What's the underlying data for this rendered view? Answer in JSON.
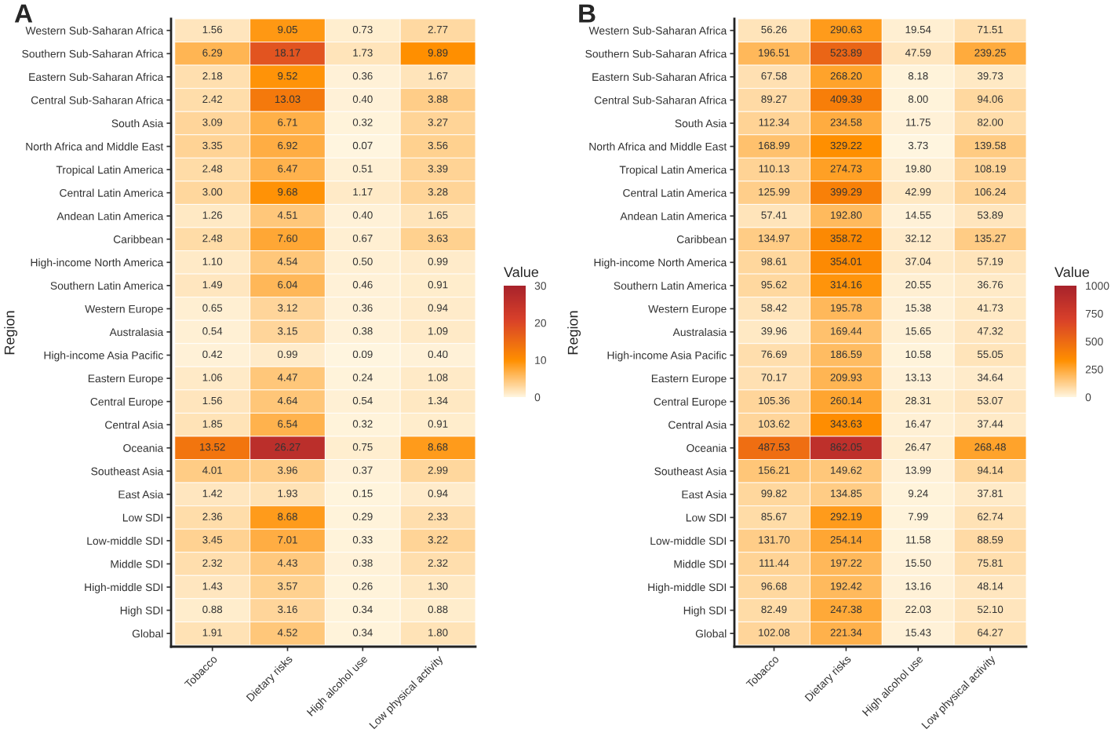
{
  "chart_data": [
    {
      "type": "heatmap",
      "title": "A",
      "ylabel": "Region",
      "clabel": "Value",
      "categories": [
        "Tobacco",
        "Dietary risks",
        "High alcohol use",
        "Low physical activity"
      ],
      "y_categories": [
        "Western Sub-Saharan Africa",
        "Southern Sub-Saharan Africa",
        "Eastern Sub-Saharan Africa",
        "Central Sub-Saharan Africa",
        "South Asia",
        "North Africa and Middle East",
        "Tropical Latin America",
        "Central Latin America",
        "Andean Latin America",
        "Caribbean",
        "High-income North America",
        "Southern Latin America",
        "Western Europe",
        "Australasia",
        "High-income Asia Pacific",
        "Eastern Europe",
        "Central Europe",
        "Central Asia",
        "Oceania",
        "Southeast Asia",
        "East Asia",
        "Low SDI",
        "Low-middle SDI",
        "Middle SDI",
        "High-middle SDI",
        "High SDI",
        "Global"
      ],
      "cells": [
        [
          1.56,
          9.05,
          0.73,
          2.77
        ],
        [
          6.29,
          18.17,
          1.73,
          9.89
        ],
        [
          2.18,
          9.52,
          0.36,
          1.67
        ],
        [
          2.42,
          13.03,
          0.4,
          3.88
        ],
        [
          3.09,
          6.71,
          0.32,
          3.27
        ],
        [
          3.35,
          6.92,
          0.07,
          3.56
        ],
        [
          2.48,
          6.47,
          0.51,
          3.39
        ],
        [
          3.0,
          9.68,
          1.17,
          3.28
        ],
        [
          1.26,
          4.51,
          0.4,
          1.65
        ],
        [
          2.48,
          7.6,
          0.67,
          3.63
        ],
        [
          1.1,
          4.54,
          0.5,
          0.99
        ],
        [
          1.49,
          6.04,
          0.46,
          0.91
        ],
        [
          0.65,
          3.12,
          0.36,
          0.94
        ],
        [
          0.54,
          3.15,
          0.38,
          1.09
        ],
        [
          0.42,
          0.99,
          0.09,
          0.4
        ],
        [
          1.06,
          4.47,
          0.24,
          1.08
        ],
        [
          1.56,
          4.64,
          0.54,
          1.34
        ],
        [
          1.85,
          6.54,
          0.32,
          0.91
        ],
        [
          13.52,
          26.27,
          0.75,
          8.68
        ],
        [
          4.01,
          3.96,
          0.37,
          2.99
        ],
        [
          1.42,
          1.93,
          0.15,
          0.94
        ],
        [
          2.36,
          8.68,
          0.29,
          2.33
        ],
        [
          3.45,
          7.01,
          0.33,
          3.22
        ],
        [
          2.32,
          4.43,
          0.38,
          2.32
        ],
        [
          1.43,
          3.57,
          0.26,
          1.3
        ],
        [
          0.88,
          3.16,
          0.34,
          0.88
        ],
        [
          1.91,
          4.52,
          0.34,
          1.8
        ]
      ],
      "cell_labels": [
        [
          "1.56",
          "9.05",
          "0.73",
          "2.77"
        ],
        [
          "6.29",
          "18.17",
          "1.73",
          "9.89"
        ],
        [
          "2.18",
          "9.52",
          "0.36",
          "1.67"
        ],
        [
          "2.42",
          "13.03",
          "0.40",
          "3.88"
        ],
        [
          "3.09",
          "6.71",
          "0.32",
          "3.27"
        ],
        [
          "3.35",
          "6.92",
          "0.07",
          "3.56"
        ],
        [
          "2.48",
          "6.47",
          "0.51",
          "3.39"
        ],
        [
          "3.00",
          "9.68",
          "1.17",
          "3.28"
        ],
        [
          "1.26",
          "4.51",
          "0.40",
          "1.65"
        ],
        [
          "2.48",
          "7.60",
          "0.67",
          "3.63"
        ],
        [
          "1.10",
          "4.54",
          "0.50",
          "0.99"
        ],
        [
          "1.49",
          "6.04",
          "0.46",
          "0.91"
        ],
        [
          "0.65",
          "3.12",
          "0.36",
          "0.94"
        ],
        [
          "0.54",
          "3.15",
          "0.38",
          "1.09"
        ],
        [
          "0.42",
          "0.99",
          "0.09",
          "0.40"
        ],
        [
          "1.06",
          "4.47",
          "0.24",
          "1.08"
        ],
        [
          "1.56",
          "4.64",
          "0.54",
          "1.34"
        ],
        [
          "1.85",
          "6.54",
          "0.32",
          "0.91"
        ],
        [
          "13.52",
          "26.27",
          "0.75",
          "8.68"
        ],
        [
          "4.01",
          "3.96",
          "0.37",
          "2.99"
        ],
        [
          "1.42",
          "1.93",
          "0.15",
          "0.94"
        ],
        [
          "2.36",
          "8.68",
          "0.29",
          "2.33"
        ],
        [
          "3.45",
          "7.01",
          "0.33",
          "3.22"
        ],
        [
          "2.32",
          "4.43",
          "0.38",
          "2.32"
        ],
        [
          "1.43",
          "3.57",
          "0.26",
          "1.30"
        ],
        [
          "0.88",
          "3.16",
          "0.34",
          "0.88"
        ],
        [
          "1.91",
          "4.52",
          "0.34",
          "1.80"
        ]
      ],
      "clim": [
        0,
        30
      ],
      "cticks": [
        0,
        10,
        20,
        30
      ]
    },
    {
      "type": "heatmap",
      "title": "B",
      "ylabel": "Region",
      "clabel": "Value",
      "categories": [
        "Tobacco",
        "Dietary risks",
        "High alcohol use",
        "Low physical activity"
      ],
      "y_categories": [
        "Western Sub-Saharan Africa",
        "Southern Sub-Saharan Africa",
        "Eastern Sub-Saharan Africa",
        "Central Sub-Saharan Africa",
        "South Asia",
        "North Africa and Middle East",
        "Tropical Latin America",
        "Central Latin America",
        "Andean Latin America",
        "Caribbean",
        "High-income North America",
        "Southern Latin America",
        "Western Europe",
        "Australasia",
        "High-income Asia Pacific",
        "Eastern Europe",
        "Central Europe",
        "Central Asia",
        "Oceania",
        "Southeast Asia",
        "East Asia",
        "Low SDI",
        "Low-middle SDI",
        "Middle SDI",
        "High-middle SDI",
        "High SDI",
        "Global"
      ],
      "cells": [
        [
          56.26,
          290.63,
          19.54,
          71.51
        ],
        [
          196.51,
          523.89,
          47.59,
          239.25
        ],
        [
          67.58,
          268.2,
          8.18,
          39.73
        ],
        [
          89.27,
          409.39,
          8.0,
          94.06
        ],
        [
          112.34,
          234.58,
          11.75,
          82.0
        ],
        [
          168.99,
          329.22,
          3.73,
          139.58
        ],
        [
          110.13,
          274.73,
          19.8,
          108.19
        ],
        [
          125.99,
          399.29,
          42.99,
          106.24
        ],
        [
          57.41,
          192.8,
          14.55,
          53.89
        ],
        [
          134.97,
          358.72,
          32.12,
          135.27
        ],
        [
          98.61,
          354.01,
          37.04,
          57.19
        ],
        [
          95.62,
          314.16,
          20.55,
          36.76
        ],
        [
          58.42,
          195.78,
          15.38,
          41.73
        ],
        [
          39.96,
          169.44,
          15.65,
          47.32
        ],
        [
          76.69,
          186.59,
          10.58,
          55.05
        ],
        [
          70.17,
          209.93,
          13.13,
          34.64
        ],
        [
          105.36,
          260.14,
          28.31,
          53.07
        ],
        [
          103.62,
          343.63,
          16.47,
          37.44
        ],
        [
          487.53,
          862.05,
          26.47,
          268.48
        ],
        [
          156.21,
          149.62,
          13.99,
          94.14
        ],
        [
          99.82,
          134.85,
          9.24,
          37.81
        ],
        [
          85.67,
          292.19,
          7.99,
          62.74
        ],
        [
          131.7,
          254.14,
          11.58,
          88.59
        ],
        [
          111.44,
          197.22,
          15.5,
          75.81
        ],
        [
          96.68,
          192.42,
          13.16,
          48.14
        ],
        [
          82.49,
          247.38,
          22.03,
          52.1
        ],
        [
          102.08,
          221.34,
          15.43,
          64.27
        ]
      ],
      "cell_labels": [
        [
          "56.26",
          "290.63",
          "19.54",
          "71.51"
        ],
        [
          "196.51",
          "523.89",
          "47.59",
          "239.25"
        ],
        [
          "67.58",
          "268.20",
          "8.18",
          "39.73"
        ],
        [
          "89.27",
          "409.39",
          "8.00",
          "94.06"
        ],
        [
          "112.34",
          "234.58",
          "11.75",
          "82.00"
        ],
        [
          "168.99",
          "329.22",
          "3.73",
          "139.58"
        ],
        [
          "110.13",
          "274.73",
          "19.80",
          "108.19"
        ],
        [
          "125.99",
          "399.29",
          "42.99",
          "106.24"
        ],
        [
          "57.41",
          "192.80",
          "14.55",
          "53.89"
        ],
        [
          "134.97",
          "358.72",
          "32.12",
          "135.27"
        ],
        [
          "98.61",
          "354.01",
          "37.04",
          "57.19"
        ],
        [
          "95.62",
          "314.16",
          "20.55",
          "36.76"
        ],
        [
          "58.42",
          "195.78",
          "15.38",
          "41.73"
        ],
        [
          "39.96",
          "169.44",
          "15.65",
          "47.32"
        ],
        [
          "76.69",
          "186.59",
          "10.58",
          "55.05"
        ],
        [
          "70.17",
          "209.93",
          "13.13",
          "34.64"
        ],
        [
          "105.36",
          "260.14",
          "28.31",
          "53.07"
        ],
        [
          "103.62",
          "343.63",
          "16.47",
          "37.44"
        ],
        [
          "487.53",
          "862.05",
          "26.47",
          "268.48"
        ],
        [
          "156.21",
          "149.62",
          "13.99",
          "94.14"
        ],
        [
          "99.82",
          "134.85",
          "9.24",
          "37.81"
        ],
        [
          "85.67",
          "292.19",
          "7.99",
          "62.74"
        ],
        [
          "131.70",
          "254.14",
          "11.58",
          "88.59"
        ],
        [
          "111.44",
          "197.22",
          "15.50",
          "75.81"
        ],
        [
          "96.68",
          "192.42",
          "13.16",
          "48.14"
        ],
        [
          "82.49",
          "247.38",
          "22.03",
          "52.10"
        ],
        [
          "102.08",
          "221.34",
          "15.43",
          "64.27"
        ]
      ],
      "clim": [
        0,
        1000
      ],
      "cticks": [
        0,
        250,
        500,
        750,
        1000
      ]
    }
  ]
}
